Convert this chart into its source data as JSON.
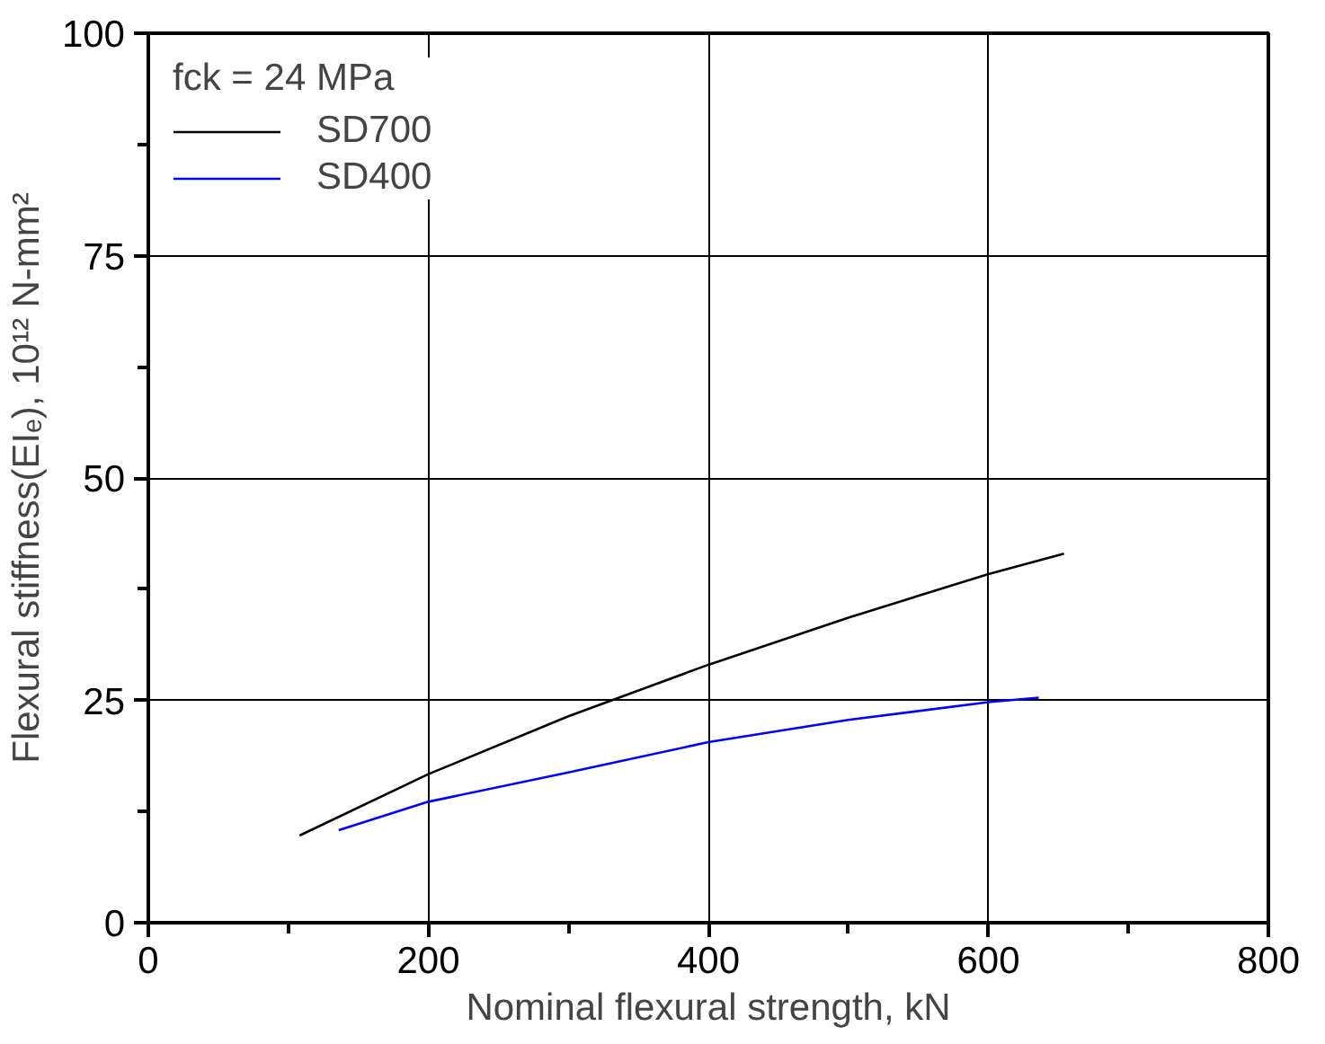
{
  "chart_data": {
    "type": "line",
    "xlabel": "Nominal flexural strength, kN",
    "ylabel": "Flexural stiffness(EIₑ), 10¹² N-mm²",
    "legend_title": "fck = 24 MPa",
    "series": [
      {
        "name": "SD700",
        "color": "#000000",
        "x": [
          108,
          200,
          300,
          331,
          400,
          500,
          600,
          654
        ],
        "values": [
          9.8,
          16.7,
          23.2,
          25.0,
          29.0,
          34.3,
          39.2,
          41.5
        ]
      },
      {
        "name": "SD400",
        "color": "#0000ff",
        "x": [
          136,
          200,
          300,
          400,
          500,
          600,
          636
        ],
        "values": [
          10.4,
          13.6,
          16.9,
          20.3,
          22.8,
          24.8,
          25.3
        ]
      }
    ],
    "xlim": [
      0,
      800
    ],
    "ylim": [
      0,
      100
    ],
    "xticks": [
      0,
      200,
      400,
      600,
      800
    ],
    "yticks": [
      0,
      25,
      50,
      75,
      100
    ],
    "grid": true,
    "legend": "top left",
    "marker": "none",
    "line_style": "solid"
  }
}
